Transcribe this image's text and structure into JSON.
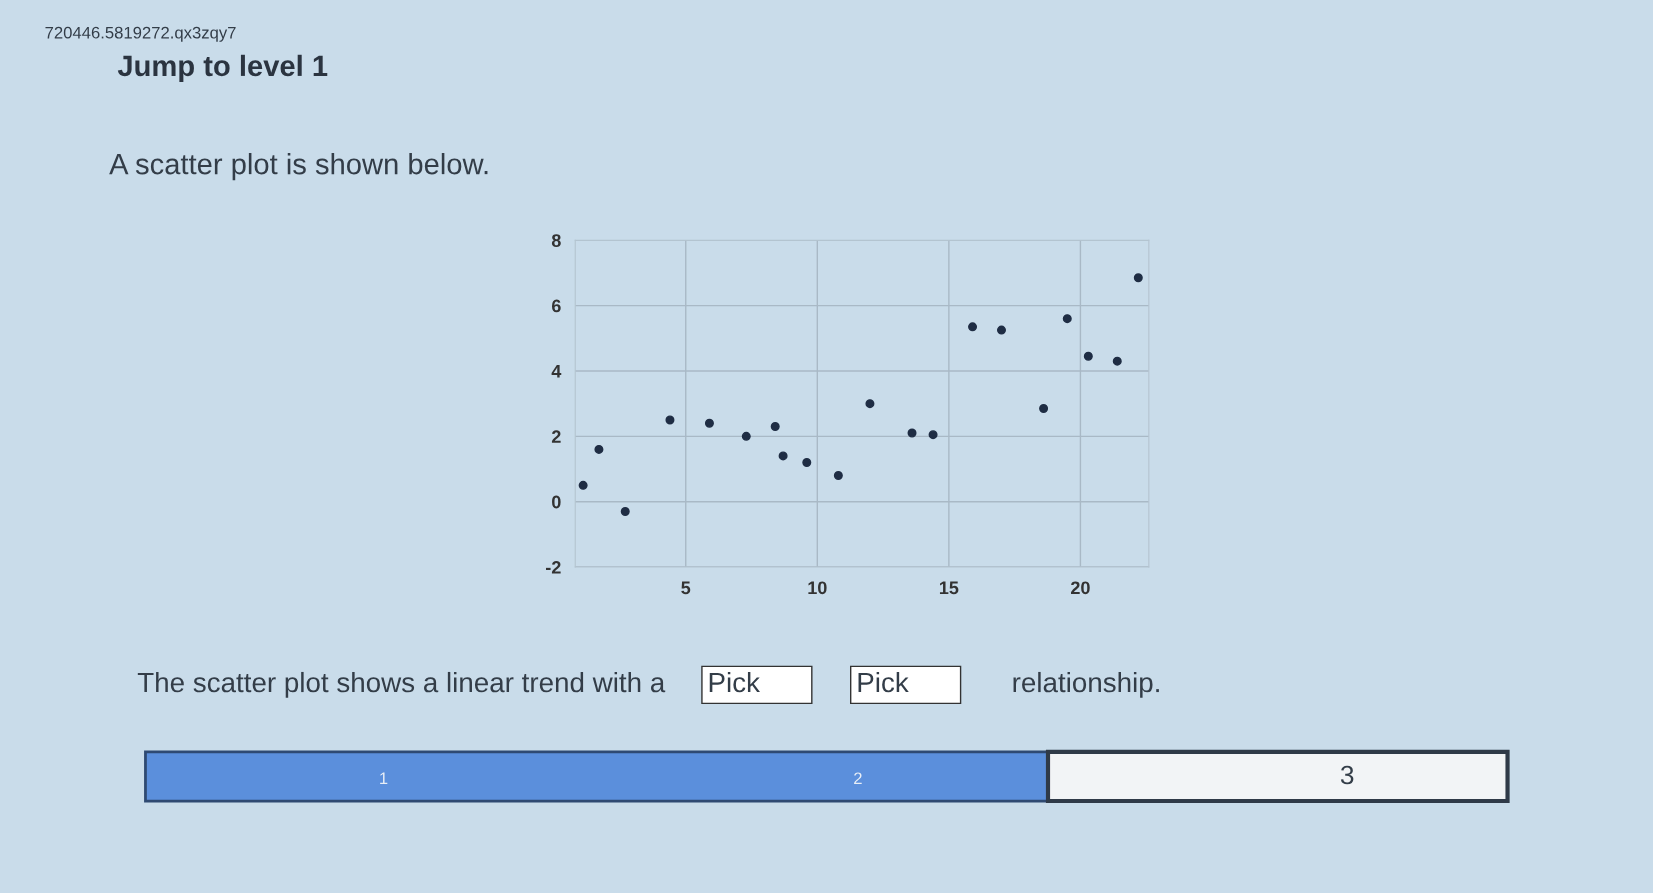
{
  "chart_data": {
    "type": "scatter",
    "title": "Jump to level 1",
    "subtitle": "A scatter plot is shown below.",
    "x": [
      1.1,
      1.7,
      2.7,
      4.4,
      5.9,
      7.3,
      8.4,
      8.7,
      9.6,
      10.8,
      12.0,
      13.6,
      14.4,
      15.9,
      17.0,
      18.6,
      19.5,
      20.3,
      21.4,
      22.2
    ],
    "series": [
      {
        "color": "#1f2d44",
        "values": [
          0.5,
          1.6,
          -0.3,
          2.5,
          2.4,
          2.0,
          2.3,
          1.4,
          1.2,
          0.8,
          3.0,
          2.1,
          2.05,
          5.35,
          5.25,
          2.85,
          5.6,
          4.45,
          4.3,
          6.85
        ]
      }
    ],
    "xlim": [
      0.8,
      22.6
    ],
    "ylim": [
      -2,
      8
    ],
    "xticks": [
      5,
      10,
      15,
      20
    ],
    "yticks": [
      -2,
      0,
      2,
      4,
      6,
      8
    ],
    "grid": true,
    "marker": "circle",
    "annotations": [
      "720446.5819272.qx3zqy7",
      "The scatter plot shows a linear trend with a",
      "Pick",
      "Pick",
      "relationship.",
      "1",
      "2",
      "3"
    ]
  }
}
